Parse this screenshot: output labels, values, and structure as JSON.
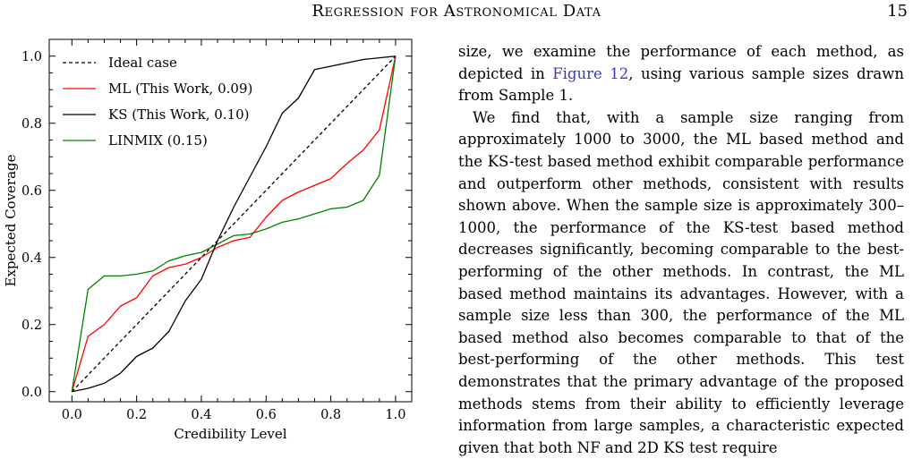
{
  "header": {
    "running_title": "Regression for Astronomical Data",
    "page_number": "15"
  },
  "chart_data": {
    "type": "line",
    "xlabel": "Credibility Level",
    "ylabel": "Expected Coverage",
    "xlim": [
      -0.07,
      1.05
    ],
    "ylim": [
      -0.03,
      1.05
    ],
    "xticks": [
      0.0,
      0.2,
      0.4,
      0.6,
      0.8,
      1.0
    ],
    "xtick_labels": [
      "0.0",
      "0.2",
      "0.4",
      "0.6",
      "0.8",
      "1.0"
    ],
    "yticks": [
      0.0,
      0.2,
      0.4,
      0.6,
      0.8,
      1.0
    ],
    "ytick_labels": [
      "0.0",
      "0.2",
      "0.4",
      "0.6",
      "0.8",
      "1.0"
    ],
    "grid": false,
    "legend_position": "top-left",
    "series": [
      {
        "name": "Ideal case",
        "color": "#000000",
        "dashed": true,
        "x": [
          0.0,
          1.0
        ],
        "y": [
          0.0,
          1.0
        ]
      },
      {
        "name": "ML (This Work, 0.09)",
        "color": "#ff0000",
        "dashed": false,
        "x": [
          0.0,
          0.05,
          0.1,
          0.15,
          0.2,
          0.25,
          0.3,
          0.35,
          0.4,
          0.45,
          0.5,
          0.55,
          0.6,
          0.65,
          0.7,
          0.75,
          0.8,
          0.85,
          0.9,
          0.95,
          1.0
        ],
        "y": [
          0.0,
          0.165,
          0.2,
          0.255,
          0.28,
          0.345,
          0.37,
          0.38,
          0.4,
          0.43,
          0.45,
          0.46,
          0.52,
          0.57,
          0.595,
          0.615,
          0.635,
          0.68,
          0.72,
          0.78,
          1.0
        ]
      },
      {
        "name": "KS (This Work, 0.10)",
        "color": "#000000",
        "dashed": false,
        "x": [
          0.0,
          0.05,
          0.1,
          0.15,
          0.2,
          0.25,
          0.3,
          0.35,
          0.4,
          0.45,
          0.5,
          0.55,
          0.6,
          0.65,
          0.7,
          0.75,
          0.8,
          0.85,
          0.9,
          0.95,
          1.0
        ],
        "y": [
          0.0,
          0.01,
          0.025,
          0.055,
          0.105,
          0.13,
          0.18,
          0.27,
          0.335,
          0.45,
          0.55,
          0.64,
          0.73,
          0.83,
          0.875,
          0.96,
          0.97,
          0.98,
          0.99,
          0.995,
          1.0
        ]
      },
      {
        "name": "LINMIX (0.15)",
        "color": "#008000",
        "dashed": false,
        "x": [
          0.0,
          0.05,
          0.1,
          0.15,
          0.2,
          0.25,
          0.3,
          0.35,
          0.4,
          0.45,
          0.5,
          0.55,
          0.6,
          0.65,
          0.7,
          0.75,
          0.8,
          0.85,
          0.9,
          0.95,
          1.0
        ],
        "y": [
          0.0,
          0.305,
          0.345,
          0.345,
          0.35,
          0.36,
          0.39,
          0.405,
          0.415,
          0.44,
          0.465,
          0.47,
          0.485,
          0.505,
          0.515,
          0.53,
          0.545,
          0.55,
          0.57,
          0.645,
          1.0
        ]
      }
    ]
  },
  "body": {
    "p1_a": "size, we examine the performance of each method, as depicted in ",
    "p1_ref": "Figure 12",
    "p1_b": ", using various sample sizes drawn from Sample 1.",
    "p2": "We find that, with a sample size ranging from approximately 1000 to 3000, the ML based method and the KS-test based method exhibit comparable performance and outperform other methods, consistent with results shown above. When the sample size is approximately 300–1000, the performance of the KS-test based method decreases significantly, becoming comparable to the best-performing of the other methods. In contrast, the ML based method maintains its advantages. However, with a sample size less than 300, the performance of the ML based method also becomes comparable to that of the best-performing of the other methods. This test demonstrates that the primary advantage of the proposed methods stems from their ability to efficiently leverage information from large samples, a characteristic expected given that both NF and 2D KS test require"
  }
}
